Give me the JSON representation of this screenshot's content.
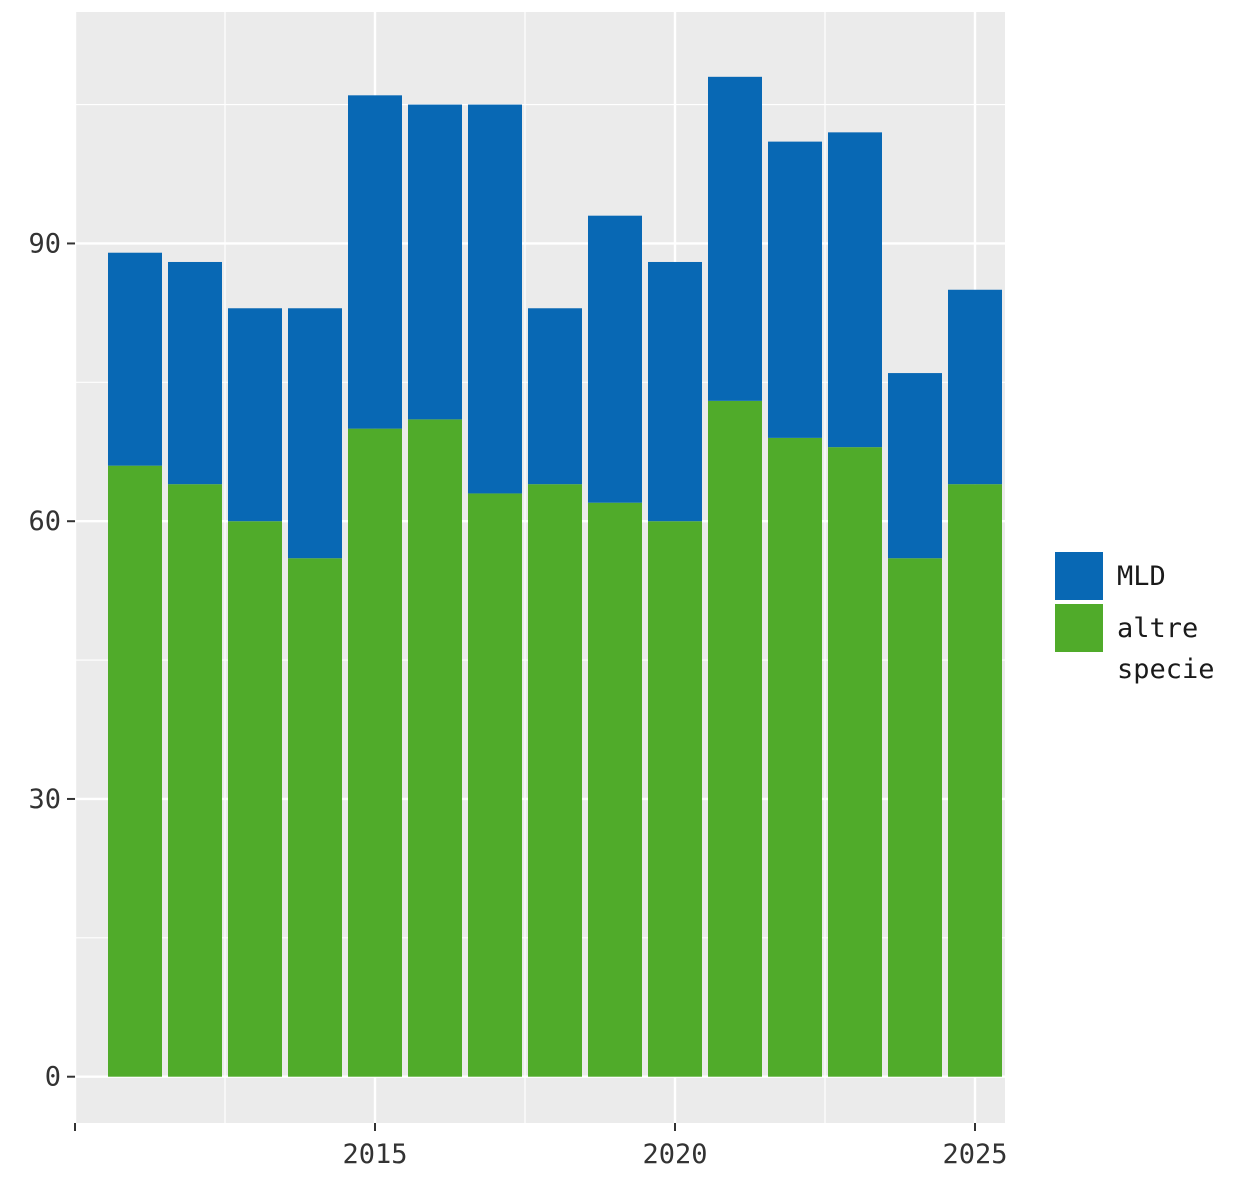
{
  "chart_data": {
    "type": "bar",
    "stacked": true,
    "title": "",
    "xlabel": "",
    "ylabel": "",
    "x": [
      2011,
      2012,
      2013,
      2014,
      2015,
      2016,
      2017,
      2018,
      2019,
      2020,
      2021,
      2022,
      2023,
      2024,
      2025
    ],
    "series": [
      {
        "name": "altre specie",
        "color": "#50ab2a",
        "values": [
          66,
          64,
          60,
          56,
          70,
          71,
          63,
          64,
          62,
          60,
          73,
          69,
          68,
          56,
          64
        ]
      },
      {
        "name": "MLD",
        "color": "#0868b4",
        "values": [
          23,
          24,
          23,
          27,
          36,
          34,
          42,
          19,
          31,
          28,
          35,
          32,
          34,
          20,
          21
        ]
      }
    ],
    "xlim": [
      2010,
      2025.5
    ],
    "ylim": [
      -5,
      115
    ],
    "x_ticks": [
      2015,
      2020,
      2025
    ],
    "x_tick_labels": [
      "2015",
      "2020",
      "2025"
    ],
    "y_ticks": [
      0,
      30,
      60,
      90
    ],
    "y_tick_labels": [
      "0",
      "30",
      "60",
      "90"
    ],
    "grid": true,
    "legend": {
      "position": "right",
      "order": [
        "MLD",
        "altre specie"
      ],
      "labels": [
        "MLD",
        "altre\nspecie"
      ]
    },
    "panel_background": "#ebebeb",
    "gridline_color": "#ffffff"
  }
}
